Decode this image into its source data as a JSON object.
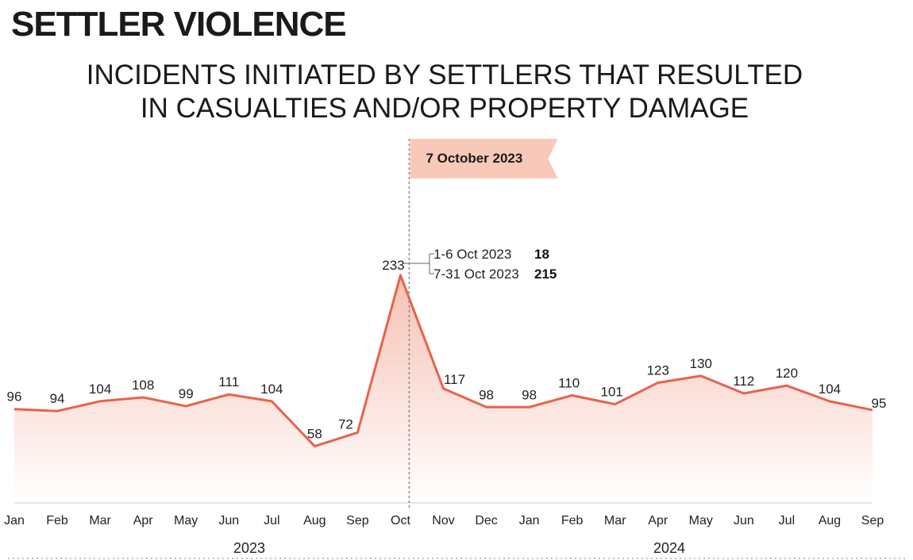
{
  "heading": "SETTLER VIOLENCE",
  "chart_data": {
    "type": "area",
    "title_line1": "INCIDENTS INITIATED BY SETTLERS THAT RESULTED",
    "title_line2": "IN CASUALTIES AND/OR PROPERTY DAMAGE",
    "categories": [
      "Jan",
      "Feb",
      "Mar",
      "Apr",
      "May",
      "Jun",
      "Jul",
      "Aug",
      "Sep",
      "Oct",
      "Nov",
      "Dec",
      "Jan",
      "Feb",
      "Mar",
      "Apr",
      "May",
      "Jun",
      "Jul",
      "Aug",
      "Sep"
    ],
    "values": [
      96,
      94,
      104,
      108,
      99,
      111,
      104,
      58,
      72,
      233,
      117,
      98,
      98,
      110,
      101,
      123,
      130,
      112,
      120,
      104,
      95
    ],
    "years": [
      {
        "label": "2023",
        "start_index": 0,
        "end_index": 11
      },
      {
        "label": "2024",
        "start_index": 12,
        "end_index": 20
      }
    ],
    "ylim": [
      0,
      250
    ],
    "grid": false,
    "marker": {
      "label": "7 October 2023",
      "category_index": 9
    },
    "breakdown": [
      {
        "label": "1-6 Oct 2023",
        "value": "18"
      },
      {
        "label": "7-31 Oct 2023",
        "value": "215"
      }
    ],
    "colors": {
      "line": "#e8634a",
      "fill_top": "#f6c1b3",
      "fill_bottom": "#ffffff",
      "flag": "#f8c9b8",
      "axis": "#cccccc"
    }
  }
}
